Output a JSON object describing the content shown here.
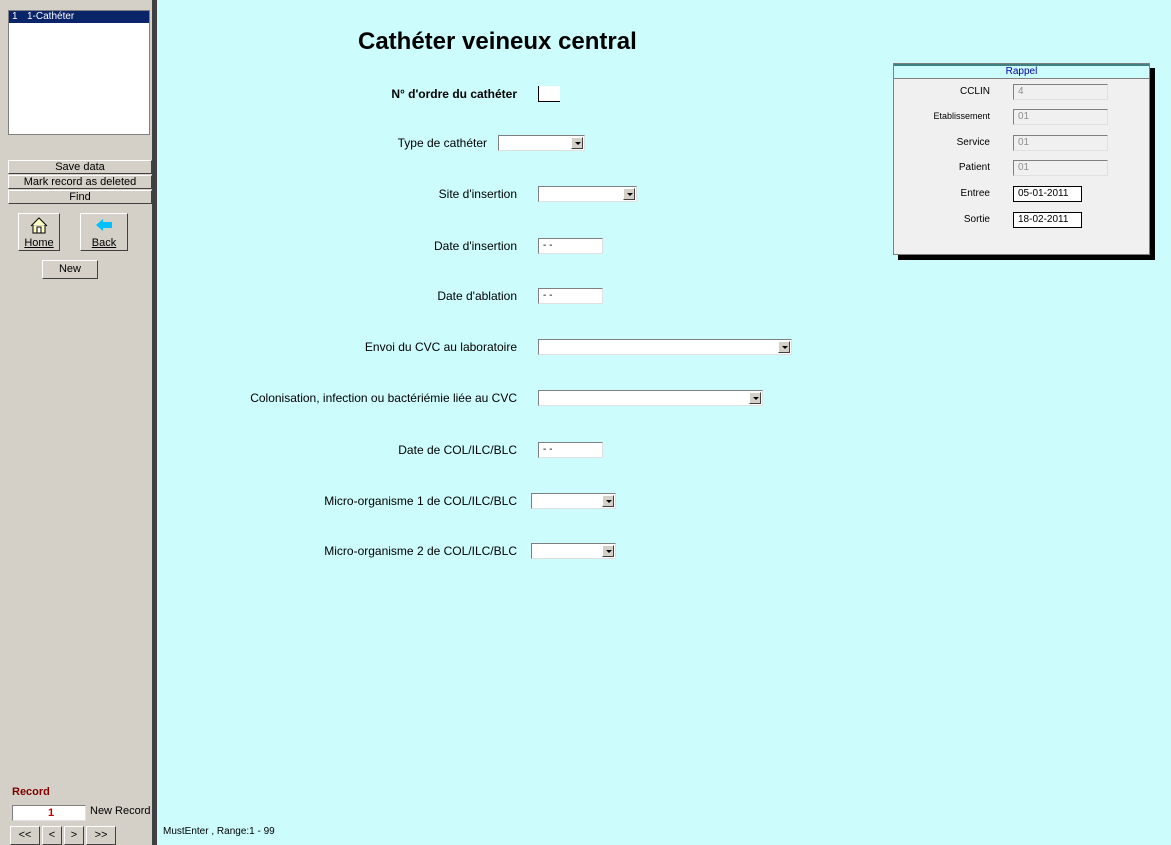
{
  "sidebar": {
    "list_items": [
      {
        "number": "1",
        "label": "1-Cathéter"
      }
    ],
    "buttons": [
      "Save data",
      "Mark record as deleted",
      "Find"
    ],
    "nav_icons": [
      "Home",
      "Back"
    ],
    "new_button": "New",
    "record": {
      "label": "Record",
      "value": "1",
      "new_record": "New Record",
      "nav": [
        "<<",
        "<",
        ">",
        ">>"
      ]
    }
  },
  "form": {
    "title": "Cathéter veineux central",
    "fields": [
      {
        "label": "N° d'ordre du cathéter"
      },
      {
        "label": "Type de cathéter"
      },
      {
        "label": "Site d'insertion"
      },
      {
        "label": "Date d'insertion",
        "value": " - -"
      },
      {
        "label": "Date d'ablation",
        "value": " - -"
      },
      {
        "label": "Envoi du CVC au laboratoire"
      },
      {
        "label": "Colonisation, infection ou bactériémie liée au CVC"
      },
      {
        "label": "Date de COL/ILC/BLC",
        "value": " - -"
      },
      {
        "label": "Micro-organisme 1 de COL/ILC/BLC"
      },
      {
        "label": "Micro-organisme 2 de COL/ILC/BLC"
      }
    ]
  },
  "rappel": {
    "title": "Rappel",
    "fields": [
      {
        "label": "CCLIN",
        "value": "4"
      },
      {
        "label": "Etablissement",
        "value": "01"
      },
      {
        "label": "Service",
        "value": "01"
      },
      {
        "label": "Patient",
        "value": "01"
      },
      {
        "label": "Entree",
        "value": "05-01-2011"
      },
      {
        "label": "Sortie",
        "value": "18-02-2011"
      }
    ]
  },
  "status": "MustEnter , Range:1 - 99"
}
